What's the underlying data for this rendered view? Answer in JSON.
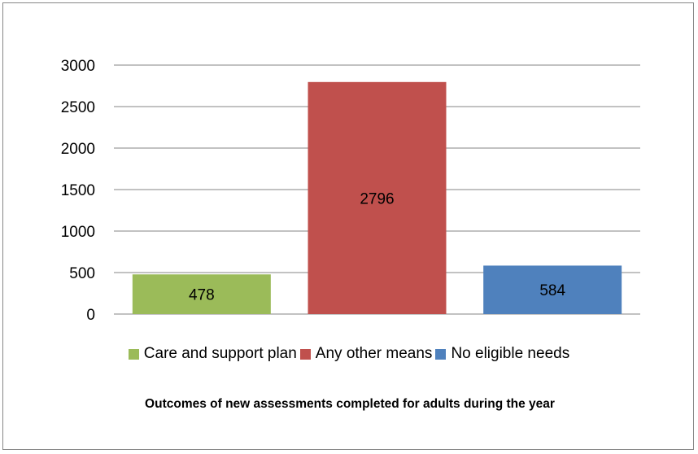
{
  "chart_data": {
    "type": "bar",
    "title": "Outcomes of new assessments completed for adults during the year",
    "categories": [
      "Care and support plan",
      "Any other means",
      "No eligible needs"
    ],
    "values": [
      478,
      2796,
      584
    ],
    "data_labels": [
      "478",
      "2796",
      "584"
    ],
    "colors": [
      "#9BBB59",
      "#C0504D",
      "#4F81BD"
    ],
    "xlabel": "",
    "ylabel": "",
    "ylim": [
      0,
      3000
    ],
    "yticks": [
      0,
      500,
      1000,
      1500,
      2000,
      2500,
      3000
    ],
    "ytick_labels": [
      "0",
      "500",
      "1000",
      "1500",
      "2000",
      "2500",
      "3000"
    ],
    "grid": true,
    "legend_position": "bottom"
  }
}
